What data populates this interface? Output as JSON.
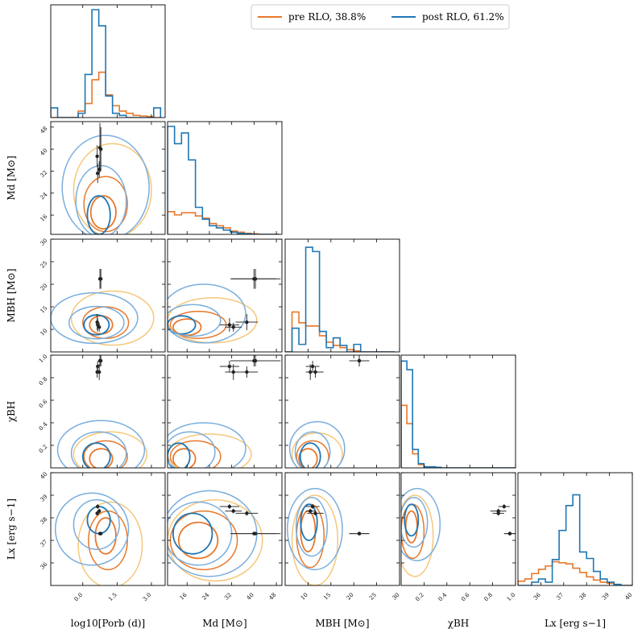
{
  "legend": [
    {
      "label": "pre RLO, 38.8%",
      "color": "#e8782a"
    },
    {
      "label": "post RLO, 61.2%",
      "color": "#1f77b4"
    }
  ],
  "colors": {
    "pre": "#e8782a",
    "pre_light": "#f5c77a",
    "post": "#1f77b4",
    "post_light": "#7aaedd",
    "obs": "#333333",
    "scatter_pre": "#f7a570",
    "scatter_post": "#9bb8e8"
  },
  "chart_data": {
    "type": "corner",
    "variables": [
      {
        "key": "logP",
        "label": "log10[Porb (d)]",
        "range": [
          -1.4,
          3.6
        ],
        "ticks": [
          0.0,
          1.5,
          3.0
        ],
        "tick_labels": [
          "0.0",
          "1.5",
          "3.0"
        ]
      },
      {
        "key": "Md",
        "label": "Md [M⊙]",
        "range": [
          9,
          50
        ],
        "ticks": [
          16,
          24,
          32,
          40,
          48
        ],
        "tick_labels": [
          "16",
          "24",
          "32",
          "40",
          "48"
        ]
      },
      {
        "key": "MBH",
        "label": "MBH [M⊙]",
        "range": [
          5,
          30
        ],
        "ticks": [
          10,
          15,
          20,
          25,
          30
        ],
        "tick_labels": [
          "10",
          "15",
          "20",
          "25",
          "30"
        ]
      },
      {
        "key": "chi",
        "label": "χBH",
        "range": [
          0.0,
          1.0
        ],
        "ticks": [
          0.2,
          0.4,
          0.6,
          0.8,
          1.0
        ],
        "tick_labels": [
          "0.2",
          "0.4",
          "0.6",
          "0.8",
          "1.0"
        ]
      },
      {
        "key": "Lx",
        "label": "Lx [erg s−1]",
        "range": [
          35.0,
          40.0
        ],
        "ticks": [
          36,
          37,
          38,
          39,
          40
        ],
        "tick_labels": [
          "36",
          "37",
          "38",
          "39",
          "40"
        ]
      }
    ],
    "y_axis_labels": {
      "Md": "Md [M⊙]",
      "MBH": "MBH [M⊙]",
      "chi": "χBH",
      "Lx": "Lx [erg s−1]"
    },
    "y_ticks": {
      "Md": {
        "ticks": [
          16,
          24,
          32,
          40,
          48
        ],
        "labels": [
          "16",
          "24",
          "32",
          "40",
          "48"
        ]
      },
      "MBH": {
        "ticks": [
          10,
          15,
          20,
          25,
          30
        ],
        "labels": [
          "10",
          "15",
          "20",
          "25",
          "30"
        ]
      },
      "chi": {
        "ticks": [
          0.2,
          0.4,
          0.6,
          0.8,
          1.0
        ],
        "labels": [
          "0.2",
          "0.4",
          "0.6",
          "0.8",
          "1.0"
        ]
      },
      "Lx": {
        "ticks": [
          36,
          37,
          38,
          39,
          40
        ],
        "labels": [
          "36",
          "37",
          "38",
          "39",
          "40"
        ]
      }
    },
    "histograms": {
      "logP": {
        "bins": [
          -1.4,
          -1.1,
          -0.8,
          -0.5,
          -0.2,
          0.1,
          0.4,
          0.7,
          1.0,
          1.3,
          1.6,
          1.9,
          2.2,
          2.5,
          2.8,
          3.1,
          3.4
        ],
        "pre": [
          0.0,
          0.0,
          0.0,
          0.0,
          0.06,
          0.13,
          0.35,
          0.42,
          0.21,
          0.11,
          0.06,
          0.04,
          0.02,
          0.015,
          0.01,
          0.0
        ],
        "post": [
          0.09,
          0.0,
          0.0,
          0.0,
          0.04,
          0.4,
          1.0,
          0.85,
          0.2,
          0.04,
          0.02,
          0.0,
          0.0,
          0.0,
          0.0,
          0.09
        ]
      },
      "Md": {
        "bins": [
          9,
          11.5,
          14,
          16.5,
          19,
          21.5,
          24,
          26.5,
          29,
          31.5,
          34,
          36.5,
          39,
          41.5,
          44,
          46.5,
          49
        ],
        "pre": [
          0.21,
          0.18,
          0.2,
          0.2,
          0.17,
          0.15,
          0.1,
          0.08,
          0.06,
          0.03,
          0.02,
          0.01,
          0.005,
          0.0,
          0.0,
          0.0
        ],
        "post": [
          1.0,
          0.84,
          0.94,
          0.69,
          0.25,
          0.14,
          0.08,
          0.06,
          0.04,
          0.02,
          0.01,
          0.005,
          0.0,
          0.0,
          0.0,
          0.0
        ]
      },
      "MBH": {
        "bins": [
          5,
          6.5,
          8,
          9.5,
          11,
          12.5,
          14,
          15.5,
          17,
          18.5,
          20,
          21.5,
          23,
          24.5,
          26,
          27.5,
          29
        ],
        "pre": [
          0.0,
          0.37,
          0.27,
          0.24,
          0.24,
          0.15,
          0.09,
          0.06,
          0.04,
          0.02,
          0.01,
          0.0,
          0.0,
          0.0,
          0.0,
          0.0
        ],
        "post": [
          0.0,
          0.22,
          0.07,
          0.97,
          0.93,
          0.19,
          0.04,
          0.13,
          0.06,
          0.0,
          0.07,
          0.0,
          0.0,
          0.0,
          0.0,
          0.0
        ]
      },
      "chi": {
        "bins": [
          0.0,
          0.05,
          0.1,
          0.15,
          0.2,
          0.25,
          0.3,
          0.35,
          0.4,
          0.45,
          0.5,
          0.55,
          0.6,
          0.65,
          0.7,
          0.75,
          0.8,
          0.85,
          0.9,
          0.95,
          1.0
        ],
        "pre": [
          0.58,
          0.41,
          0.13,
          0.03,
          0.01,
          0.01,
          0.0,
          0.0,
          0.0,
          0.0,
          0.0,
          0.0,
          0.0,
          0.0,
          0.0,
          0.0,
          0.0,
          0.0,
          0.0,
          0.0
        ],
        "post": [
          0.99,
          0.91,
          0.17,
          0.04,
          0.01,
          0.01,
          0.005,
          0.0,
          0.0,
          0.0,
          0.0,
          0.0,
          0.0,
          0.0,
          0.0,
          0.0,
          0.0,
          0.0,
          0.0,
          0.0
        ]
      },
      "Lx": {
        "bins": [
          35.0,
          35.3,
          35.6,
          35.9,
          36.2,
          36.5,
          36.8,
          37.1,
          37.4,
          37.7,
          38.0,
          38.3,
          38.6,
          38.9,
          39.2,
          39.5,
          40.0
        ],
        "pre": [
          0.04,
          0.06,
          0.11,
          0.15,
          0.18,
          0.22,
          0.21,
          0.2,
          0.16,
          0.12,
          0.08,
          0.05,
          0.03,
          0.02,
          0.01,
          0.0
        ],
        "post": [
          0.0,
          0.0,
          0.03,
          0.06,
          0.03,
          0.24,
          0.51,
          0.74,
          0.84,
          0.31,
          0.25,
          0.13,
          0.06,
          0.03,
          0.01,
          0.0
        ]
      }
    },
    "observations": {
      "logP": [
        0.75,
        0.65,
        0.72,
        0.63,
        0.79
      ],
      "logP_err": [
        0.05,
        0.05,
        0.05,
        0.05,
        0.05
      ],
      "Md": [
        40.5,
        31.2,
        32.6,
        37.4,
        40.0
      ],
      "Md_err": [
        9.0,
        3.5,
        3.0,
        4.0,
        8.0
      ],
      "MBH": [
        21.2,
        11.0,
        10.5,
        11.6,
        21.2
      ],
      "MBH_err": [
        2.2,
        1.5,
        1.0,
        1.8,
        2.2
      ],
      "chi": [
        0.95,
        0.9,
        0.85,
        0.85,
        0.95
      ],
      "chi_err": [
        0.05,
        0.05,
        0.07,
        0.05,
        0.05
      ],
      "Lx": [
        37.3,
        38.5,
        38.3,
        38.2,
        37.3
      ],
      "Lx_err": [
        0.0,
        0.1,
        0.1,
        0.1,
        0.0
      ]
    },
    "contours": {
      "Md|logP": {
        "pre": [
          {
            "cx": 0.9,
            "cy": 17,
            "rx": 0.55,
            "ry": 6,
            "lvl": 0
          },
          {
            "cx": 1.0,
            "cy": 20,
            "rx": 0.95,
            "ry": 10,
            "lvl": 1
          },
          {
            "cx": 1.3,
            "cy": 25,
            "rx": 1.7,
            "ry": 17,
            "lvl": 2
          }
        ],
        "post": [
          {
            "cx": 0.7,
            "cy": 16,
            "rx": 0.5,
            "ry": 7,
            "lvl": 0
          },
          {
            "cx": 0.8,
            "cy": 21,
            "rx": 1.1,
            "ry": 13,
            "lvl": 1
          },
          {
            "cx": 1.0,
            "cy": 26,
            "rx": 1.9,
            "ry": 19,
            "lvl": 2
          }
        ]
      },
      "MBH|logP": {
        "pre": [
          {
            "cx": 0.8,
            "cy": 11,
            "rx": 0.5,
            "ry": 2.0,
            "lvl": 0
          },
          {
            "cx": 1.0,
            "cy": 11.5,
            "rx": 1.0,
            "ry": 3.5,
            "lvl": 1
          },
          {
            "cx": 1.3,
            "cy": 12.5,
            "rx": 1.8,
            "ry": 6.0,
            "lvl": 2
          }
        ],
        "post": [
          {
            "cx": 0.6,
            "cy": 11,
            "rx": 0.55,
            "ry": 2.2,
            "lvl": 0
          },
          {
            "cx": 0.6,
            "cy": 11.5,
            "rx": 1.2,
            "ry": 3.6,
            "lvl": 1
          },
          {
            "cx": 0.5,
            "cy": 12.5,
            "rx": 1.9,
            "ry": 5.6,
            "lvl": 2
          }
        ]
      },
      "MBH|Md": {
        "pre": [
          {
            "cx": 16,
            "cy": 10.5,
            "rx": 5,
            "ry": 1.8,
            "lvl": 0
          },
          {
            "cx": 20,
            "cy": 11,
            "rx": 10,
            "ry": 3.0,
            "lvl": 1
          },
          {
            "cx": 25,
            "cy": 12,
            "rx": 16,
            "ry": 5.0,
            "lvl": 2
          }
        ],
        "post": [
          {
            "cx": 14,
            "cy": 11,
            "rx": 5,
            "ry": 2.0,
            "lvl": 0
          },
          {
            "cx": 18,
            "cy": 12,
            "rx": 10,
            "ry": 3.5,
            "lvl": 1
          },
          {
            "cx": 22,
            "cy": 13.5,
            "rx": 15,
            "ry": 6.5,
            "lvl": 2
          }
        ]
      },
      "chi|logP": {
        "pre": [
          {
            "cx": 0.8,
            "cy": 0.08,
            "rx": 0.5,
            "ry": 0.09,
            "lvl": 0
          },
          {
            "cx": 1.0,
            "cy": 0.1,
            "rx": 0.95,
            "ry": 0.14,
            "lvl": 1
          },
          {
            "cx": 1.2,
            "cy": 0.12,
            "rx": 1.6,
            "ry": 0.2,
            "lvl": 2
          }
        ],
        "post": [
          {
            "cx": 0.6,
            "cy": 0.1,
            "rx": 0.6,
            "ry": 0.12,
            "lvl": 0
          },
          {
            "cx": 0.7,
            "cy": 0.13,
            "rx": 1.2,
            "ry": 0.19,
            "lvl": 1
          },
          {
            "cx": 0.8,
            "cy": 0.16,
            "rx": 1.9,
            "ry": 0.26,
            "lvl": 2
          }
        ]
      },
      "chi|Md": {
        "pre": [
          {
            "cx": 15,
            "cy": 0.08,
            "rx": 4,
            "ry": 0.09,
            "lvl": 0
          },
          {
            "cx": 19,
            "cy": 0.1,
            "rx": 9,
            "ry": 0.14,
            "lvl": 1
          },
          {
            "cx": 24,
            "cy": 0.12,
            "rx": 15,
            "ry": 0.18,
            "lvl": 2
          }
        ],
        "post": [
          {
            "cx": 13,
            "cy": 0.1,
            "rx": 4,
            "ry": 0.12,
            "lvl": 0
          },
          {
            "cx": 17,
            "cy": 0.14,
            "rx": 9,
            "ry": 0.18,
            "lvl": 1
          },
          {
            "cx": 22,
            "cy": 0.17,
            "rx": 15,
            "ry": 0.23,
            "lvl": 2
          }
        ]
      },
      "chi|MBH": {
        "pre": [
          {
            "cx": 10,
            "cy": 0.08,
            "rx": 2.0,
            "ry": 0.09,
            "lvl": 0
          },
          {
            "cx": 11,
            "cy": 0.1,
            "rx": 3.5,
            "ry": 0.14,
            "lvl": 1
          },
          {
            "cx": 12,
            "cy": 0.12,
            "rx": 5.5,
            "ry": 0.19,
            "lvl": 2
          }
        ],
        "post": [
          {
            "cx": 10.5,
            "cy": 0.1,
            "rx": 2.2,
            "ry": 0.12,
            "lvl": 0
          },
          {
            "cx": 11,
            "cy": 0.14,
            "rx": 3.8,
            "ry": 0.18,
            "lvl": 1
          },
          {
            "cx": 12,
            "cy": 0.17,
            "rx": 6.0,
            "ry": 0.24,
            "lvl": 2
          }
        ]
      },
      "Lx|logP": {
        "pre": [
          {
            "cx": 1.0,
            "cy": 37.2,
            "rx": 0.45,
            "ry": 0.8,
            "lvl": 0
          },
          {
            "cx": 1.1,
            "cy": 37.0,
            "rx": 0.85,
            "ry": 1.3,
            "lvl": 1
          },
          {
            "cx": 1.2,
            "cy": 36.8,
            "rx": 1.4,
            "ry": 1.9,
            "lvl": 2
          }
        ],
        "post": [
          {
            "cx": 0.7,
            "cy": 37.9,
            "rx": 0.5,
            "ry": 0.6,
            "lvl": 0
          },
          {
            "cx": 0.6,
            "cy": 37.7,
            "rx": 1.0,
            "ry": 1.1,
            "lvl": 1
          },
          {
            "cx": 0.4,
            "cy": 37.5,
            "rx": 1.6,
            "ry": 1.6,
            "lvl": 2
          }
        ]
      },
      "Lx|Md": {
        "pre": [
          {
            "cx": 20,
            "cy": 37.0,
            "rx": 7,
            "ry": 0.8,
            "lvl": 0
          },
          {
            "cx": 22,
            "cy": 37.0,
            "rx": 12,
            "ry": 1.3,
            "lvl": 1
          },
          {
            "cx": 26,
            "cy": 37.0,
            "rx": 17,
            "ry": 1.8,
            "lvl": 2
          }
        ],
        "post": [
          {
            "cx": 18,
            "cy": 37.3,
            "rx": 7,
            "ry": 0.9,
            "lvl": 0
          },
          {
            "cx": 20,
            "cy": 37.3,
            "rx": 12,
            "ry": 1.4,
            "lvl": 1
          },
          {
            "cx": 24,
            "cy": 37.3,
            "rx": 17,
            "ry": 1.9,
            "lvl": 2
          }
        ]
      },
      "Lx|MBH": {
        "pre": [
          {
            "cx": 10,
            "cy": 37.4,
            "rx": 1.6,
            "ry": 0.9,
            "lvl": 0
          },
          {
            "cx": 10.5,
            "cy": 37.2,
            "rx": 3.0,
            "ry": 1.4,
            "lvl": 1
          },
          {
            "cx": 11.5,
            "cy": 37.0,
            "rx": 5.0,
            "ry": 2.0,
            "lvl": 2
          }
        ],
        "post": [
          {
            "cx": 10.2,
            "cy": 37.8,
            "rx": 1.8,
            "ry": 0.8,
            "lvl": 0
          },
          {
            "cx": 10.8,
            "cy": 37.6,
            "rx": 3.4,
            "ry": 1.3,
            "lvl": 1
          },
          {
            "cx": 11.5,
            "cy": 37.5,
            "rx": 6.0,
            "ry": 1.8,
            "lvl": 2
          }
        ]
      },
      "Lx|chi": {
        "pre": [
          {
            "cx": 0.09,
            "cy": 37.6,
            "rx": 0.05,
            "ry": 0.7,
            "lvl": 0
          },
          {
            "cx": 0.1,
            "cy": 37.4,
            "rx": 0.1,
            "ry": 1.2,
            "lvl": 1
          },
          {
            "cx": 0.12,
            "cy": 37.2,
            "rx": 0.16,
            "ry": 1.8,
            "lvl": 2
          }
        ],
        "post": [
          {
            "cx": 0.09,
            "cy": 37.9,
            "rx": 0.06,
            "ry": 0.7,
            "lvl": 0
          },
          {
            "cx": 0.11,
            "cy": 37.8,
            "rx": 0.12,
            "ry": 1.1,
            "lvl": 1
          },
          {
            "cx": 0.14,
            "cy": 37.7,
            "rx": 0.2,
            "ry": 1.6,
            "lvl": 2
          }
        ]
      }
    }
  }
}
